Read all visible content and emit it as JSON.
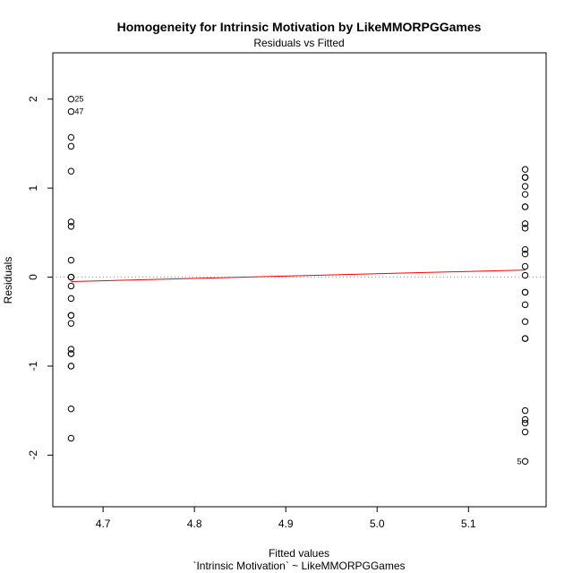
{
  "chart_data": {
    "type": "scatter",
    "title": "Homogeneity for Intrinsic Motivation by LikeMMORPGGames",
    "subtitle": "Residuals vs Fitted",
    "xlabel": "Fitted values",
    "xlabel_sub": "`Intrinsic Motivation` ~ LikeMMORPGGames",
    "ylabel": "Residuals",
    "xlim": [
      4.645,
      5.185
    ],
    "ylim": [
      -2.58,
      2.52
    ],
    "xticks": [
      "4.7",
      "4.8",
      "4.9",
      "5.0",
      "5.1"
    ],
    "yticks": [
      "-2",
      "-1",
      "0",
      "1",
      "2"
    ],
    "grid": false,
    "reference_line": {
      "y": 0,
      "style": "dotted",
      "color": "#aaaaaa"
    },
    "smooth_line": {
      "x": [
        4.665,
        5.162
      ],
      "y": [
        -0.05,
        0.08
      ],
      "color": "#ff0000"
    },
    "groups": [
      {
        "x": 4.665,
        "residuals": [
          2.0,
          1.86,
          1.57,
          1.47,
          1.19,
          0.62,
          0.57,
          0.19,
          0.0,
          0.0,
          0.0,
          -0.1,
          -0.24,
          -0.43,
          -0.43,
          -0.52,
          -0.81,
          -0.86,
          -0.86,
          -1.0,
          -1.0,
          -1.48,
          -1.81
        ]
      },
      {
        "x": 5.162,
        "residuals": [
          1.21,
          1.12,
          1.12,
          1.12,
          1.02,
          0.93,
          0.79,
          0.79,
          0.6,
          0.55,
          0.31,
          0.26,
          0.12,
          0.02,
          -0.17,
          -0.17,
          -0.31,
          -0.5,
          -0.69,
          -0.69,
          -1.5,
          -1.6,
          -1.64,
          -1.74,
          -2.07
        ]
      }
    ],
    "annotations": [
      {
        "text": "25",
        "x": 4.665,
        "y": 2.0,
        "side": "right"
      },
      {
        "text": "47",
        "x": 4.665,
        "y": 1.86,
        "side": "right"
      },
      {
        "text": "5",
        "x": 5.162,
        "y": -2.07,
        "side": "left"
      }
    ]
  }
}
